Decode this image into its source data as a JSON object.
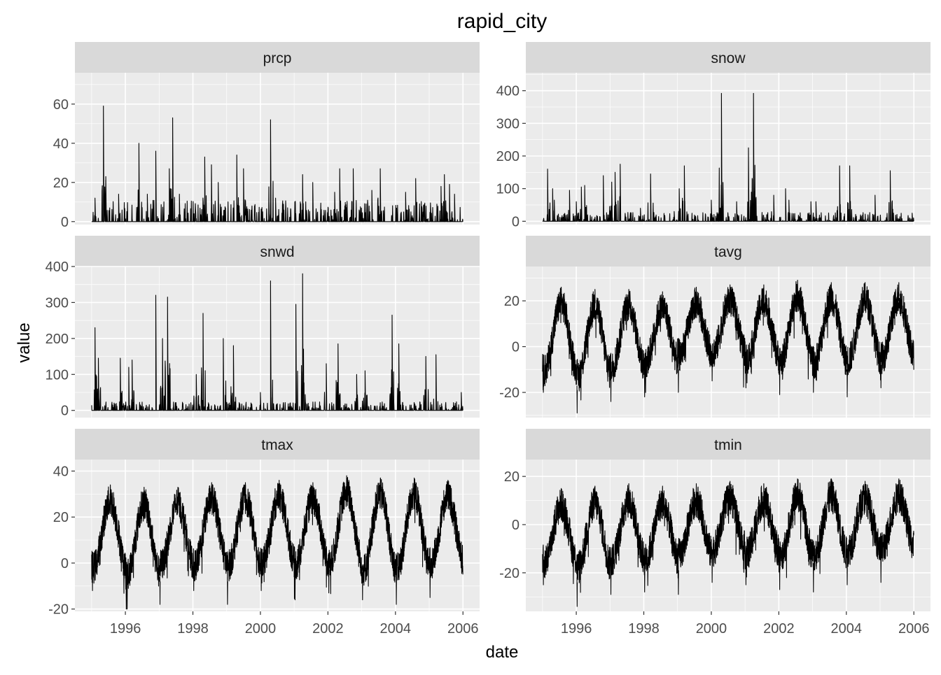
{
  "chart_data": {
    "type": "line",
    "title": "rapid_city",
    "xlabel": "date",
    "ylabel": "value",
    "grid": true,
    "x_range": [
      "1995-01-01",
      "2005-12-31"
    ],
    "x_ticks": [
      1996,
      1998,
      2000,
      2002,
      2004,
      2006
    ],
    "facets": [
      {
        "name": "prcp",
        "ylim": [
          -1.5,
          76
        ],
        "yticks": [
          0,
          20,
          40,
          60
        ],
        "kind": "spiky",
        "baseline": 0,
        "peaks": [
          {
            "x": 1995.1,
            "y": 12
          },
          {
            "x": 1995.35,
            "y": 59
          },
          {
            "x": 1995.42,
            "y": 23
          },
          {
            "x": 1995.8,
            "y": 14
          },
          {
            "x": 1996.4,
            "y": 40
          },
          {
            "x": 1996.65,
            "y": 14
          },
          {
            "x": 1996.9,
            "y": 36
          },
          {
            "x": 1997.3,
            "y": 27
          },
          {
            "x": 1997.4,
            "y": 53
          },
          {
            "x": 1997.6,
            "y": 14
          },
          {
            "x": 1998.35,
            "y": 33
          },
          {
            "x": 1998.55,
            "y": 29
          },
          {
            "x": 1998.75,
            "y": 20
          },
          {
            "x": 1999.3,
            "y": 34
          },
          {
            "x": 1999.5,
            "y": 27
          },
          {
            "x": 2000.3,
            "y": 52
          },
          {
            "x": 2000.45,
            "y": 12
          },
          {
            "x": 2001.25,
            "y": 24
          },
          {
            "x": 2001.55,
            "y": 20
          },
          {
            "x": 2002.2,
            "y": 15
          },
          {
            "x": 2002.35,
            "y": 27
          },
          {
            "x": 2002.75,
            "y": 27
          },
          {
            "x": 2003.3,
            "y": 16
          },
          {
            "x": 2003.55,
            "y": 27
          },
          {
            "x": 2004.3,
            "y": 15
          },
          {
            "x": 2004.6,
            "y": 22
          },
          {
            "x": 2005.35,
            "y": 18
          },
          {
            "x": 2005.45,
            "y": 24
          },
          {
            "x": 2005.6,
            "y": 19
          },
          {
            "x": 2005.75,
            "y": 14
          }
        ]
      },
      {
        "name": "snow",
        "ylim": [
          -10,
          455
        ],
        "yticks": [
          0,
          100,
          200,
          300,
          400
        ],
        "kind": "spiky",
        "baseline": 0,
        "peaks": [
          {
            "x": 1995.15,
            "y": 160
          },
          {
            "x": 1995.3,
            "y": 100
          },
          {
            "x": 1995.35,
            "y": 65
          },
          {
            "x": 1995.8,
            "y": 95
          },
          {
            "x": 1996.0,
            "y": 60
          },
          {
            "x": 1996.15,
            "y": 105
          },
          {
            "x": 1996.25,
            "y": 110
          },
          {
            "x": 1996.8,
            "y": 140
          },
          {
            "x": 1997.05,
            "y": 120
          },
          {
            "x": 1997.15,
            "y": 150
          },
          {
            "x": 1997.3,
            "y": 175
          },
          {
            "x": 1997.9,
            "y": 40
          },
          {
            "x": 1998.2,
            "y": 145
          },
          {
            "x": 1998.9,
            "y": 30
          },
          {
            "x": 1999.05,
            "y": 100
          },
          {
            "x": 1999.2,
            "y": 170
          },
          {
            "x": 2000.0,
            "y": 65
          },
          {
            "x": 2000.3,
            "y": 392
          },
          {
            "x": 2000.75,
            "y": 60
          },
          {
            "x": 2001.1,
            "y": 225
          },
          {
            "x": 2001.25,
            "y": 392
          },
          {
            "x": 2001.85,
            "y": 80
          },
          {
            "x": 2002.2,
            "y": 100
          },
          {
            "x": 2002.3,
            "y": 65
          },
          {
            "x": 2002.95,
            "y": 60
          },
          {
            "x": 2003.1,
            "y": 60
          },
          {
            "x": 2003.8,
            "y": 170
          },
          {
            "x": 2004.1,
            "y": 170
          },
          {
            "x": 2004.85,
            "y": 80
          },
          {
            "x": 2005.3,
            "y": 155
          },
          {
            "x": 2005.95,
            "y": 25
          }
        ]
      },
      {
        "name": "snwd",
        "ylim": [
          -20,
          400
        ],
        "yticks": [
          0,
          100,
          200,
          300,
          400
        ],
        "kind": "spiky",
        "baseline": 0,
        "peaks": [
          {
            "x": 1995.1,
            "y": 230
          },
          {
            "x": 1995.2,
            "y": 145
          },
          {
            "x": 1995.85,
            "y": 145
          },
          {
            "x": 1996.1,
            "y": 120
          },
          {
            "x": 1996.2,
            "y": 140
          },
          {
            "x": 1996.9,
            "y": 320
          },
          {
            "x": 1997.1,
            "y": 200
          },
          {
            "x": 1997.25,
            "y": 315
          },
          {
            "x": 1998.1,
            "y": 100
          },
          {
            "x": 1998.3,
            "y": 270
          },
          {
            "x": 1998.9,
            "y": 200
          },
          {
            "x": 1999.2,
            "y": 180
          },
          {
            "x": 2000.0,
            "y": 50
          },
          {
            "x": 2000.3,
            "y": 360
          },
          {
            "x": 2001.05,
            "y": 295
          },
          {
            "x": 2001.25,
            "y": 380
          },
          {
            "x": 2001.95,
            "y": 130
          },
          {
            "x": 2002.3,
            "y": 185
          },
          {
            "x": 2002.85,
            "y": 100
          },
          {
            "x": 2003.1,
            "y": 110
          },
          {
            "x": 2003.9,
            "y": 265
          },
          {
            "x": 2004.1,
            "y": 185
          },
          {
            "x": 2004.9,
            "y": 150
          },
          {
            "x": 2005.2,
            "y": 155
          },
          {
            "x": 2005.95,
            "y": 50
          }
        ]
      },
      {
        "name": "tavg",
        "ylim": [
          -31,
          35
        ],
        "yticks": [
          -20,
          0,
          20
        ],
        "kind": "seasonal",
        "summer_peaks": [
          26,
          25,
          25,
          24,
          26,
          27,
          27,
          29,
          28,
          28,
          28
        ],
        "winter_lows": [
          -20,
          -29,
          -24,
          -22,
          -20,
          -15,
          -18,
          -21,
          -20,
          -22,
          -18,
          -20
        ]
      },
      {
        "name": "tmax",
        "ylim": [
          -21,
          45
        ],
        "yticks": [
          -20,
          0,
          20,
          40
        ],
        "kind": "seasonal",
        "summer_peaks": [
          34,
          33,
          33,
          35,
          35,
          36,
          35,
          38,
          37,
          37,
          36
        ],
        "winter_lows": [
          -12,
          -20,
          -18,
          -12,
          -18,
          -12,
          -16,
          -13,
          -16,
          -18,
          -15,
          -13
        ]
      },
      {
        "name": "tmin",
        "ylim": [
          -36,
          27
        ],
        "yticks": [
          -20,
          0,
          20
        ],
        "kind": "seasonal",
        "summer_peaks": [
          15,
          16,
          17,
          16,
          17,
          18,
          17,
          19,
          19,
          18,
          19
        ],
        "winter_lows": [
          -25,
          -34,
          -29,
          -28,
          -29,
          -24,
          -25,
          -27,
          -28,
          -25,
          -24,
          -24
        ]
      }
    ]
  }
}
